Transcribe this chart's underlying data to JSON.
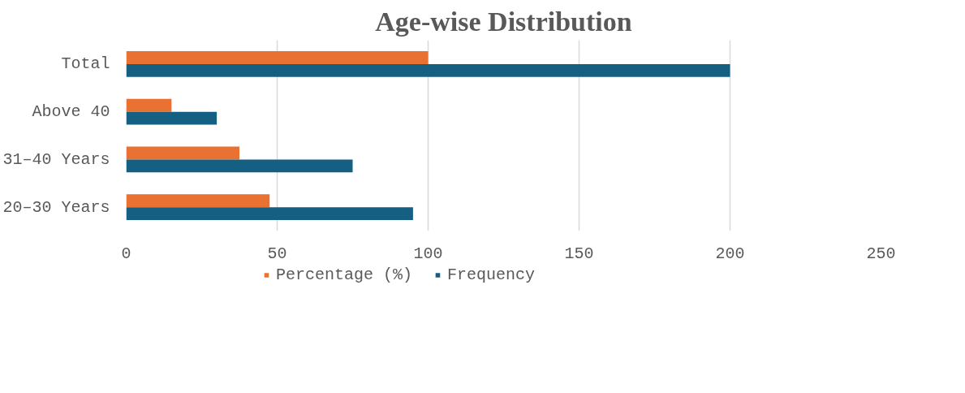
{
  "chart_data": {
    "type": "bar",
    "orientation": "horizontal",
    "title": "Age-wise Distribution",
    "categories": [
      "Total",
      "Above 40",
      "31–40 Years",
      "20–30 Years"
    ],
    "series": [
      {
        "name": "Percentage (%)",
        "color": "#e97132",
        "values": [
          100,
          15,
          37.5,
          47.5
        ]
      },
      {
        "name": "Frequency",
        "color": "#156082",
        "values": [
          200,
          30,
          75,
          95
        ]
      }
    ],
    "xlim": [
      0,
      250
    ],
    "xticks": [
      0,
      50,
      100,
      150,
      200,
      250
    ],
    "grid": "x",
    "legend": "bottom"
  }
}
